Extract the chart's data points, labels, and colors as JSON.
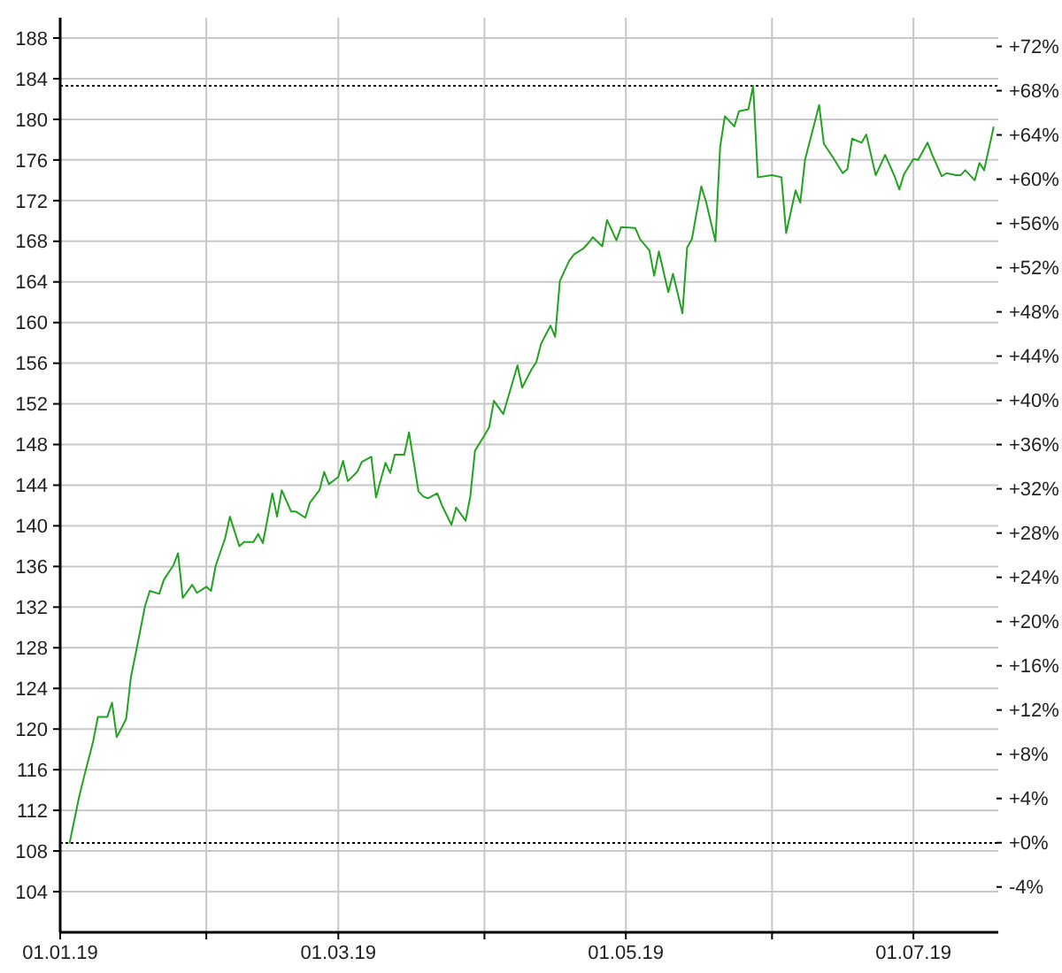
{
  "chart_data": {
    "type": "line",
    "x": [
      "2019-01-03",
      "2019-01-05",
      "2019-01-06",
      "2019-01-08",
      "2019-01-09",
      "2019-01-11",
      "2019-01-12",
      "2019-01-13",
      "2019-01-15",
      "2019-01-16",
      "2019-01-17",
      "2019-01-19",
      "2019-01-20",
      "2019-01-22",
      "2019-01-23",
      "2019-01-25",
      "2019-01-26",
      "2019-01-27",
      "2019-01-29",
      "2019-01-30",
      "2019-02-01",
      "2019-02-02",
      "2019-02-03",
      "2019-02-05",
      "2019-02-06",
      "2019-02-08",
      "2019-02-09",
      "2019-02-11",
      "2019-02-12",
      "2019-02-13",
      "2019-02-15",
      "2019-02-16",
      "2019-02-17",
      "2019-02-19",
      "2019-02-20",
      "2019-02-22",
      "2019-02-23",
      "2019-02-25",
      "2019-02-26",
      "2019-02-27",
      "2019-03-01",
      "2019-03-02",
      "2019-03-03",
      "2019-03-05",
      "2019-03-06",
      "2019-03-08",
      "2019-03-09",
      "2019-03-11",
      "2019-03-12",
      "2019-03-13",
      "2019-03-15",
      "2019-03-16",
      "2019-03-18",
      "2019-03-19",
      "2019-03-20",
      "2019-03-22",
      "2019-03-23",
      "2019-03-25",
      "2019-03-26",
      "2019-03-28",
      "2019-03-29",
      "2019-03-30",
      "2019-04-01",
      "2019-04-02",
      "2019-04-03",
      "2019-04-05",
      "2019-04-08",
      "2019-04-09",
      "2019-04-11",
      "2019-04-12",
      "2019-04-13",
      "2019-04-15",
      "2019-04-16",
      "2019-04-17",
      "2019-04-19",
      "2019-04-20",
      "2019-04-22",
      "2019-04-23",
      "2019-04-24",
      "2019-04-26",
      "2019-04-27",
      "2019-04-29",
      "2019-04-30",
      "2019-05-03",
      "2019-05-04",
      "2019-05-06",
      "2019-05-07",
      "2019-05-08",
      "2019-05-10",
      "2019-05-11",
      "2019-05-13",
      "2019-05-14",
      "2019-05-15",
      "2019-05-17",
      "2019-05-18",
      "2019-05-20",
      "2019-05-21",
      "2019-05-22",
      "2019-05-24",
      "2019-05-25",
      "2019-05-27",
      "2019-05-28",
      "2019-05-29",
      "2019-06-01",
      "2019-06-03",
      "2019-06-04",
      "2019-06-06",
      "2019-06-07",
      "2019-06-08",
      "2019-06-11",
      "2019-06-12",
      "2019-06-14",
      "2019-06-16",
      "2019-06-17",
      "2019-06-18",
      "2019-06-20",
      "2019-06-21",
      "2019-06-23",
      "2019-06-25",
      "2019-06-27",
      "2019-06-28",
      "2019-06-29",
      "2019-07-01",
      "2019-07-02",
      "2019-07-04",
      "2019-07-05",
      "2019-07-07",
      "2019-07-08",
      "2019-07-10",
      "2019-07-11",
      "2019-07-12",
      "2019-07-14",
      "2019-07-15",
      "2019-07-16",
      "2019-07-18"
    ],
    "series": [
      {
        "color": "#21a321",
        "values": [
          108.8,
          113.3,
          115.2,
          118.8,
          121.2,
          121.2,
          122.6,
          119.2,
          121.0,
          125.1,
          127.4,
          132.1,
          133.6,
          133.3,
          134.7,
          136.1,
          137.3,
          132.9,
          134.2,
          133.4,
          134.0,
          133.6,
          136.1,
          138.8,
          140.9,
          138.0,
          138.4,
          138.4,
          139.2,
          138.3,
          143.2,
          140.9,
          143.5,
          141.4,
          141.4,
          140.8,
          142.3,
          143.5,
          145.3,
          144.1,
          144.8,
          146.4,
          144.4,
          145.3,
          146.3,
          146.8,
          142.8,
          146.2,
          145.2,
          147.0,
          147.0,
          149.2,
          143.4,
          142.9,
          142.7,
          143.2,
          142.0,
          140.1,
          141.8,
          140.5,
          142.9,
          147.4,
          148.9,
          149.7,
          152.3,
          151.0,
          155.8,
          153.6,
          155.4,
          156.1,
          157.9,
          159.7,
          158.6,
          164.1,
          166.1,
          166.7,
          167.3,
          167.8,
          168.4,
          167.5,
          170.1,
          168.1,
          169.4,
          169.3,
          168.2,
          167.1,
          164.6,
          167.0,
          163.0,
          164.8,
          160.9,
          167.4,
          168.2,
          173.4,
          171.9,
          168.0,
          177.3,
          180.3,
          179.3,
          180.8,
          181.0,
          183.3,
          174.3,
          174.5,
          174.3,
          168.8,
          173.0,
          171.8,
          176.0,
          181.4,
          177.6,
          176.2,
          174.7,
          175.1,
          178.1,
          177.7,
          178.5,
          174.5,
          176.5,
          174.4,
          173.1,
          174.6,
          176.1,
          176.0,
          177.7,
          176.5,
          174.4,
          174.7,
          174.5,
          174.5,
          175.0,
          174.0,
          175.7,
          175.0,
          179.2
        ]
      }
    ],
    "xlim": [
      "2019-01-01",
      "2019-07-19"
    ],
    "xticks": [
      {
        "value": "2019-01-01",
        "label": "01.01.19"
      },
      {
        "value": "2019-02-01",
        "label": null
      },
      {
        "value": "2019-03-01",
        "label": "01.03.19"
      },
      {
        "value": "2019-04-01",
        "label": null
      },
      {
        "value": "2019-05-01",
        "label": "01.05.19"
      },
      {
        "value": "2019-06-01",
        "label": null
      },
      {
        "value": "2019-07-01",
        "label": "01.07.19"
      }
    ],
    "ylim": [
      100,
      190
    ],
    "yticks": [
      104,
      108,
      112,
      116,
      120,
      124,
      128,
      132,
      136,
      140,
      144,
      148,
      152,
      156,
      160,
      164,
      168,
      172,
      176,
      180,
      184,
      188
    ],
    "y2lim": [
      -8.1,
      74.6
    ],
    "y2ticks": [
      {
        "value": -4,
        "label": "-4%"
      },
      {
        "value": 0,
        "label": "+0%"
      },
      {
        "value": 4,
        "label": "+4%"
      },
      {
        "value": 8,
        "label": "+8%"
      },
      {
        "value": 12,
        "label": "+12%"
      },
      {
        "value": 16,
        "label": "+16%"
      },
      {
        "value": 20,
        "label": "+20%"
      },
      {
        "value": 24,
        "label": "+24%"
      },
      {
        "value": 28,
        "label": "+28%"
      },
      {
        "value": 32,
        "label": "+32%"
      },
      {
        "value": 36,
        "label": "+36%"
      },
      {
        "value": 40,
        "label": "+40%"
      },
      {
        "value": 44,
        "label": "+44%"
      },
      {
        "value": 48,
        "label": "+48%"
      },
      {
        "value": 52,
        "label": "+52%"
      },
      {
        "value": 56,
        "label": "+56%"
      },
      {
        "value": 60,
        "label": "+60%"
      },
      {
        "value": 64,
        "label": "+64%"
      },
      {
        "value": 68,
        "label": "+68%"
      },
      {
        "value": 72,
        "label": "+72%"
      }
    ],
    "ref_lines": [
      {
        "axis": "y",
        "value": 108.8,
        "line_style": "dotted",
        "color": "#000000"
      },
      {
        "axis": "y",
        "value": 183.3,
        "line_style": "dotted",
        "color": "#000000"
      }
    ],
    "grid": true
  }
}
